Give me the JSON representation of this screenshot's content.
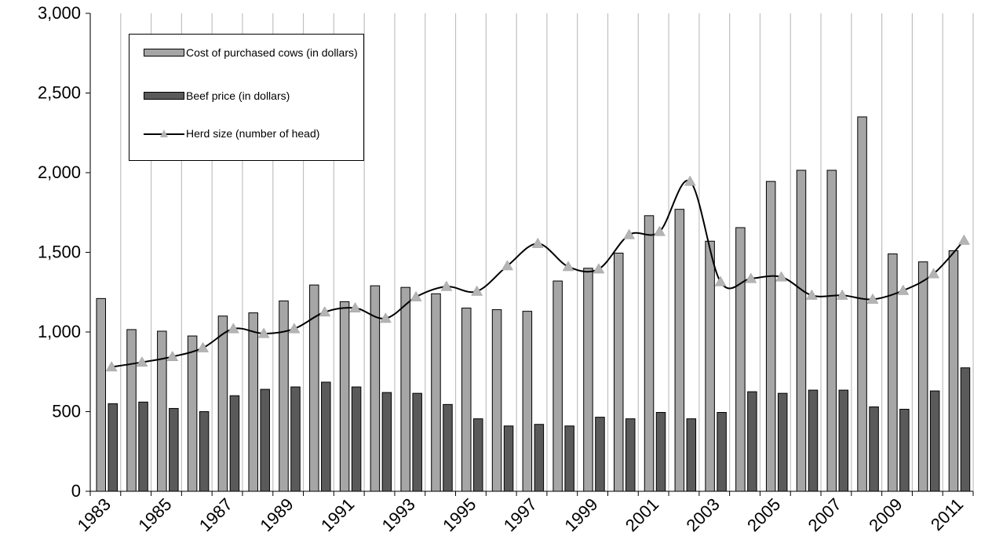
{
  "chart_data": {
    "type": "bar",
    "title": "",
    "xlabel": "",
    "ylabel": "",
    "ylim": [
      0,
      3000
    ],
    "yticks": [
      "0",
      "500",
      "1,000",
      "1,500",
      "2,000",
      "2,500",
      "3,000"
    ],
    "ytick_values": [
      0,
      500,
      1000,
      1500,
      2000,
      2500,
      3000
    ],
    "categories": [
      1983,
      1984,
      1985,
      1986,
      1987,
      1988,
      1989,
      1990,
      1991,
      1992,
      1993,
      1994,
      1995,
      1996,
      1997,
      1998,
      1999,
      2000,
      2001,
      2002,
      2003,
      2004,
      2005,
      2006,
      2007,
      2008,
      2009,
      2010,
      2011
    ],
    "xtick_labels": [
      "1983",
      "1985",
      "1987",
      "1989",
      "1991",
      "1993",
      "1995",
      "1997",
      "1999",
      "2001",
      "2003",
      "2005",
      "2007",
      "2009",
      "2011"
    ],
    "grid": "vertical",
    "legend_position": "top-left",
    "series": [
      {
        "name": "Cost of purchased cows (in dollars)",
        "kind": "bar",
        "color": "#a6a6a6",
        "values": [
          1210,
          1015,
          1005,
          975,
          1100,
          1120,
          1195,
          1295,
          1190,
          1290,
          1280,
          1240,
          1150,
          1140,
          1130,
          1320,
          1400,
          1495,
          1730,
          1770,
          1570,
          1655,
          1945,
          2015,
          2015,
          2350,
          1490,
          1440,
          1510
        ]
      },
      {
        "name": "Beef price (in dollars)",
        "kind": "bar",
        "color": "#5a5a5a",
        "values": [
          550,
          560,
          520,
          500,
          600,
          640,
          655,
          685,
          655,
          620,
          615,
          545,
          455,
          410,
          420,
          410,
          465,
          455,
          495,
          455,
          495,
          625,
          615,
          635,
          635,
          530,
          515,
          630,
          775
        ]
      },
      {
        "name": "Herd size (number of head)",
        "kind": "line",
        "color": "#000000",
        "marker_color": "#b4b4b4",
        "values": [
          780,
          810,
          845,
          900,
          1020,
          990,
          1020,
          1125,
          1150,
          1085,
          1220,
          1285,
          1255,
          1415,
          1555,
          1410,
          1395,
          1610,
          1630,
          1945,
          1315,
          1335,
          1345,
          1230,
          1230,
          1205,
          1260,
          1365,
          1575
        ]
      }
    ]
  },
  "legend": {
    "items": [
      {
        "label": "Cost of purchased cows (in dollars)"
      },
      {
        "label": "Beef price (in dollars)"
      },
      {
        "label": "Herd size (number of head)"
      }
    ]
  }
}
